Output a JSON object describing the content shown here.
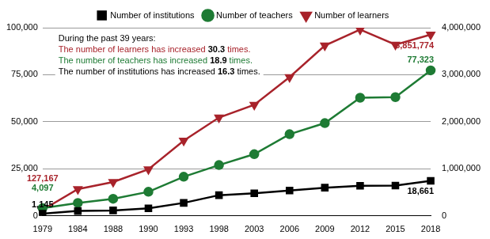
{
  "chart_data": {
    "type": "line",
    "categories": [
      "1979",
      "1984",
      "1988",
      "1990",
      "1993",
      "1998",
      "2003",
      "2006",
      "2009",
      "2012",
      "2015",
      "2018"
    ],
    "series": [
      {
        "name": "Number of institutions",
        "color": "#000000",
        "marker": "square",
        "values": [
          1145,
          2600,
          2900,
          4000,
          6900,
          11000,
          12000,
          13500,
          15000,
          16000,
          16100,
          18661
        ],
        "value_labels": [
          "1,145",
          null,
          null,
          null,
          null,
          null,
          null,
          null,
          null,
          null,
          null,
          "18,661"
        ]
      },
      {
        "name": "Number of teachers",
        "color": "#1e7b34",
        "marker": "circle",
        "values": [
          4097,
          6900,
          9100,
          12800,
          20800,
          27000,
          32800,
          43400,
          49300,
          62800,
          63100,
          77323
        ],
        "value_labels": [
          "4,097",
          null,
          null,
          null,
          null,
          null,
          null,
          null,
          null,
          null,
          null,
          "77,323"
        ]
      },
      {
        "name": "Number of learners",
        "color": "#a8232b",
        "marker": "triangle-down",
        "axis": "y2",
        "values": [
          127167,
          570000,
          720000,
          990000,
          1600000,
          2090000,
          2360000,
          2950000,
          3620000,
          3960000,
          3640000,
          3851774
        ],
        "value_labels": [
          "127,167",
          null,
          null,
          null,
          null,
          null,
          null,
          null,
          null,
          null,
          null,
          "3,851,774"
        ]
      }
    ],
    "ylim": [
      0,
      100000
    ],
    "yticks": [
      0,
      {
        "value": 25000,
        "label": "25,000"
      },
      {
        "value": 50000,
        "label": "50,000"
      },
      {
        "value": 75000,
        "label": "75,000"
      },
      {
        "value": 100000,
        "label": "100,000"
      }
    ],
    "y2lim": [
      0,
      4000000
    ],
    "y2ticks": [
      0,
      {
        "value": 1000000,
        "label": "1,000,000"
      },
      {
        "value": 2000000,
        "label": "2,000,000"
      },
      {
        "value": 3000000,
        "label": "3,000,000"
      },
      {
        "value": 4000000,
        "label": "4,000,000"
      }
    ],
    "grid": true,
    "legend": "top",
    "annotation": {
      "heading": "During the past 39 years:",
      "lines": [
        {
          "text": "The number of learners has increased 30.3 times.",
          "color": "#a8232b"
        },
        {
          "text": "The number of teachers has increased 18.9 times.",
          "color": "#1e7b34"
        },
        {
          "text": "The number of institutions has increased 16.3 times.",
          "color": "#000000"
        }
      ]
    }
  }
}
